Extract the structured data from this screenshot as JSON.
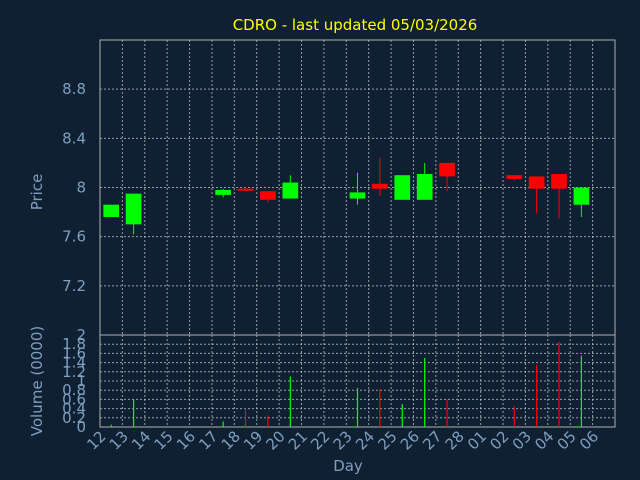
{
  "chart_data": [
    {
      "type": "candlestick",
      "title": "CDRO - last updated 05/03/2026",
      "ylabel": "Price",
      "ylim": [
        6.8,
        9.2
      ],
      "yticks": [
        7.2,
        7.6,
        8,
        8.4,
        8.8
      ],
      "ytick_labels": [
        "7.2",
        "7.6",
        "8",
        "8.4",
        "8.8"
      ],
      "grid": true,
      "up_color": "#00ff00",
      "down_color": "#ff0000",
      "candles": [
        {
          "x": 0,
          "open": 7.76,
          "high": 7.86,
          "low": 7.76,
          "close": 7.86
        },
        {
          "x": 1,
          "open": 7.7,
          "high": 7.95,
          "low": 7.62,
          "close": 7.95
        },
        {
          "x": 5,
          "open": 7.94,
          "high": 7.99,
          "low": 7.92,
          "close": 7.98
        },
        {
          "x": 6,
          "open": 7.99,
          "high": 8.0,
          "low": 7.97,
          "close": 7.98
        },
        {
          "x": 7,
          "open": 7.97,
          "high": 7.97,
          "low": 7.88,
          "close": 7.9
        },
        {
          "x": 8,
          "open": 7.91,
          "high": 8.1,
          "low": 7.91,
          "close": 8.04
        },
        {
          "x": 11,
          "open": 7.91,
          "high": 8.12,
          "low": 7.86,
          "close": 7.96
        },
        {
          "x": 12,
          "open": 8.03,
          "high": 8.24,
          "low": 7.93,
          "close": 7.99
        },
        {
          "x": 13,
          "open": 7.9,
          "high": 8.1,
          "low": 7.9,
          "close": 8.1
        },
        {
          "x": 14,
          "open": 7.9,
          "high": 8.2,
          "low": 7.9,
          "close": 8.11
        },
        {
          "x": 15,
          "open": 8.2,
          "high": 8.2,
          "low": 7.97,
          "close": 8.09
        },
        {
          "x": 18,
          "open": 8.1,
          "high": 8.1,
          "low": 8.06,
          "close": 8.07
        },
        {
          "x": 19,
          "open": 8.09,
          "high": 8.09,
          "low": 7.79,
          "close": 7.99
        },
        {
          "x": 20,
          "open": 8.11,
          "high": 8.11,
          "low": 7.75,
          "close": 7.99
        },
        {
          "x": 21,
          "open": 7.86,
          "high": 8.0,
          "low": 7.76,
          "close": 8.0
        }
      ]
    },
    {
      "type": "bar",
      "xlabel": "Day",
      "ylabel": "Volume (0000)",
      "ylim": [
        0,
        2
      ],
      "yticks": [
        0,
        0.2,
        0.4,
        0.6,
        0.8,
        1,
        1.2,
        1.4,
        1.6,
        1.8,
        2
      ],
      "ytick_labels": [
        "0",
        "0.2",
        "0.4",
        "0.6",
        "0.8",
        "1",
        "1.2",
        "1.4",
        "1.6",
        "1.8",
        "2"
      ],
      "grid": true,
      "categories": [
        "12",
        "13",
        "14",
        "15",
        "16",
        "17",
        "18",
        "19",
        "20",
        "21",
        "22",
        "23",
        "24",
        "25",
        "26",
        "27",
        "28",
        "01",
        "02",
        "03",
        "04",
        "05",
        "06"
      ],
      "volumes": [
        {
          "x": 0,
          "value": 0.05,
          "color": "#00ff00"
        },
        {
          "x": 1,
          "value": 0.6,
          "color": "#00ff00"
        },
        {
          "x": 5,
          "value": 0.12,
          "color": "#00ff00"
        },
        {
          "x": 6,
          "value": 0.4,
          "color": "#ff0000"
        },
        {
          "x": 7,
          "value": 0.25,
          "color": "#ff0000"
        },
        {
          "x": 8,
          "value": 1.1,
          "color": "#00ff00"
        },
        {
          "x": 11,
          "value": 0.85,
          "color": "#00ff00"
        },
        {
          "x": 12,
          "value": 0.82,
          "color": "#ff0000"
        },
        {
          "x": 13,
          "value": 0.5,
          "color": "#00ff00"
        },
        {
          "x": 14,
          "value": 1.5,
          "color": "#00ff00"
        },
        {
          "x": 15,
          "value": 0.6,
          "color": "#ff0000"
        },
        {
          "x": 18,
          "value": 0.45,
          "color": "#ff0000"
        },
        {
          "x": 19,
          "value": 1.35,
          "color": "#ff0000"
        },
        {
          "x": 20,
          "value": 1.85,
          "color": "#ff0000"
        },
        {
          "x": 21,
          "value": 1.55,
          "color": "#00ff00"
        }
      ]
    }
  ]
}
